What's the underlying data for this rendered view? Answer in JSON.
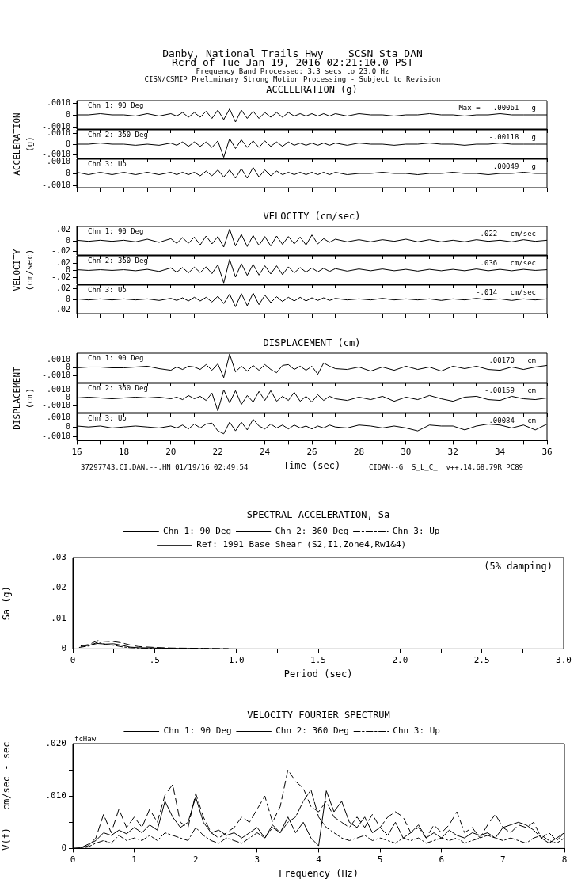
{
  "chart_data": [
    {
      "type": "other",
      "title": "Danby, National Trails Hwy    SCSN Sta DAN",
      "subtitle": "Rcrd of Tue Jan 19, 2016 02:21:10.0 PST",
      "annotations": [
        "Frequency Band Processed: 3.3 secs to 23.0 Hz",
        "CISN/CSMIP Preliminary Strong Motion Processing - Subject to Revision"
      ]
    },
    {
      "type": "line",
      "title": "ACCELERATION (g)",
      "annotations": [
        "Chn 1: 90 Deg",
        "Max =  -.00061   g"
      ],
      "tick_labels": "y",
      "x": [
        16,
        16.5,
        17,
        17.5,
        18,
        18.5,
        19,
        19.5,
        20,
        20.25,
        20.5,
        20.75,
        21,
        21.25,
        21.5,
        21.75,
        22,
        22.25,
        22.5,
        22.75,
        23,
        23.25,
        23.5,
        23.75,
        24,
        24.25,
        24.5,
        24.75,
        25,
        25.25,
        25.5,
        25.75,
        26,
        26.25,
        26.5,
        26.75,
        27,
        27.5,
        28,
        28.5,
        29,
        29.5,
        30,
        30.5,
        31,
        31.5,
        32,
        32.5,
        33,
        33.5,
        34,
        34.5,
        35,
        35.5,
        36
      ],
      "xlim": [
        16,
        36
      ],
      "xticks": [
        16,
        {
          "value": 17,
          "label": null
        },
        18,
        {
          "value": 19,
          "label": null
        },
        20,
        {
          "value": 21,
          "label": null
        },
        22,
        {
          "value": 23,
          "label": null
        },
        24,
        {
          "value": 25,
          "label": null
        },
        26,
        {
          "value": 27,
          "label": null
        },
        28,
        {
          "value": 29,
          "label": null
        },
        30,
        {
          "value": 31,
          "label": null
        },
        32,
        {
          "value": 33,
          "label": null
        },
        34,
        {
          "value": 35,
          "label": null
        },
        36
      ],
      "ylim": [
        -0.0012,
        0.0012
      ],
      "yticks": [
        {
          "value": 0.001,
          "label": ".0010"
        },
        {
          "value": 0,
          "label": "0"
        },
        {
          "value": -0.001,
          "label": "-.0010"
        }
      ],
      "series": [
        {
          "color": "#000000",
          "values": [
            0,
            0,
            0.0001,
            0,
            0,
            -0.0001,
            0.0001,
            -0.0001,
            0.0001,
            -0.0001,
            0.0002,
            -0.0002,
            0.0002,
            -0.0002,
            0.0003,
            -0.0003,
            0.0004,
            -0.0004,
            0.0005,
            -0.0006,
            0.0004,
            -0.0003,
            0.0003,
            -0.0003,
            0.0002,
            -0.0002,
            0.0002,
            -0.0002,
            0.0002,
            -0.0001,
            0.0001,
            -0.0001,
            0.0001,
            -0.0001,
            0.0001,
            -0.0001,
            0.0001,
            -0.0001,
            0.0001,
            0,
            0,
            -0.0001,
            0,
            0,
            0.0001,
            0,
            0,
            -0.0001,
            0,
            0,
            0.0001,
            0,
            0,
            0,
            0
          ]
        }
      ]
    },
    {
      "type": "line",
      "ylabel": "ACCELERATION\n(g)",
      "annotations": [
        "Chn 2: 360 Deg",
        "-.00118   g"
      ],
      "tick_labels": "y",
      "x": [
        16,
        16.5,
        17,
        17.5,
        18,
        18.5,
        19,
        19.5,
        20,
        20.25,
        20.5,
        20.75,
        21,
        21.25,
        21.5,
        21.75,
        22,
        22.25,
        22.5,
        22.75,
        23,
        23.25,
        23.5,
        23.75,
        24,
        24.25,
        24.5,
        24.75,
        25,
        25.25,
        25.5,
        25.75,
        26,
        26.25,
        26.5,
        26.75,
        27,
        27.5,
        28,
        28.5,
        29,
        29.5,
        30,
        30.5,
        31,
        31.5,
        32,
        32.5,
        33,
        33.5,
        34,
        34.5,
        35,
        35.5,
        36
      ],
      "xlim": [
        16,
        36
      ],
      "xticks": [
        16,
        {
          "value": 17,
          "label": null
        },
        18,
        {
          "value": 19,
          "label": null
        },
        20,
        {
          "value": 21,
          "label": null
        },
        22,
        {
          "value": 23,
          "label": null
        },
        24,
        {
          "value": 25,
          "label": null
        },
        26,
        {
          "value": 27,
          "label": null
        },
        28,
        {
          "value": 29,
          "label": null
        },
        30,
        {
          "value": 31,
          "label": null
        },
        32,
        {
          "value": 33,
          "label": null
        },
        34,
        {
          "value": 35,
          "label": null
        },
        36
      ],
      "ylim": [
        -0.0013,
        0.0013
      ],
      "yticks": [
        {
          "value": 0.001,
          "label": ".0010"
        },
        {
          "value": 0,
          "label": "0"
        },
        {
          "value": -0.001,
          "label": "-.0010"
        }
      ],
      "series": [
        {
          "color": "#000000",
          "values": [
            0,
            0,
            0.0001,
            0,
            0,
            -0.0001,
            0,
            -0.0001,
            0.0001,
            -0.0001,
            0.0002,
            -0.0002,
            0.0002,
            -0.0002,
            0.0002,
            -0.0003,
            0.0003,
            -0.0012,
            0.0005,
            -0.0004,
            0.0004,
            -0.0003,
            0.0003,
            -0.0003,
            0.0003,
            -0.0002,
            0.0002,
            -0.0002,
            0.0002,
            -0.0001,
            0.0001,
            -0.0001,
            0.0001,
            -0.0001,
            0.0001,
            -0.0001,
            0.0001,
            -0.0001,
            0.0001,
            0,
            0,
            -0.0001,
            0,
            0,
            0.0001,
            0,
            0,
            -0.0001,
            0,
            0,
            0.0001,
            0,
            0,
            0,
            0
          ]
        }
      ]
    },
    {
      "type": "line",
      "annotations": [
        "Chn 3: Up",
        ".00049   g"
      ],
      "tick_labels": "y",
      "x": [
        16,
        16.5,
        17,
        17.5,
        18,
        18.5,
        19,
        19.5,
        20,
        20.25,
        20.5,
        20.75,
        21,
        21.25,
        21.5,
        21.75,
        22,
        22.25,
        22.5,
        22.75,
        23,
        23.25,
        23.5,
        23.75,
        24,
        24.25,
        24.5,
        24.75,
        25,
        25.25,
        25.5,
        25.75,
        26,
        26.25,
        26.5,
        26.75,
        27,
        27.5,
        28,
        28.5,
        29,
        29.5,
        30,
        30.5,
        31,
        31.5,
        32,
        32.5,
        33,
        33.5,
        34,
        34.5,
        35,
        35.5,
        36
      ],
      "xlim": [
        16,
        36
      ],
      "xticks": [
        16,
        {
          "value": 17,
          "label": null
        },
        18,
        {
          "value": 19,
          "label": null
        },
        20,
        {
          "value": 21,
          "label": null
        },
        22,
        {
          "value": 23,
          "label": null
        },
        24,
        {
          "value": 25,
          "label": null
        },
        26,
        {
          "value": 27,
          "label": null
        },
        28,
        {
          "value": 29,
          "label": null
        },
        30,
        {
          "value": 31,
          "label": null
        },
        32,
        {
          "value": 33,
          "label": null
        },
        34,
        {
          "value": 35,
          "label": null
        },
        36
      ],
      "ylim": [
        -0.0012,
        0.0012
      ],
      "yticks": [
        {
          "value": 0.001,
          "label": ".0010"
        },
        {
          "value": 0,
          "label": "0"
        },
        {
          "value": -0.001,
          "label": "-.0010"
        }
      ],
      "series": [
        {
          "color": "#000000",
          "values": [
            0.0001,
            -0.0001,
            0.0001,
            -0.0001,
            0.0001,
            -0.0001,
            0.0001,
            -0.0001,
            0.0001,
            -0.0001,
            0.0001,
            -0.0001,
            0.0001,
            -0.0002,
            0.0002,
            -0.0002,
            0.0003,
            -0.0003,
            0.0003,
            -0.0004,
            0.0004,
            -0.0004,
            0.0005,
            -0.0003,
            0.0003,
            -0.0002,
            0.0002,
            -0.0001,
            0.0001,
            -0.0001,
            0.0001,
            -0.0001,
            0.0001,
            -0.0001,
            0.0001,
            -0.0001,
            0.0001,
            -0.0001,
            0,
            0,
            0.0001,
            0,
            0,
            -0.0001,
            0,
            0,
            0.0001,
            0,
            0,
            -0.0001,
            0,
            0,
            0.0001,
            0,
            0
          ]
        }
      ]
    },
    {
      "type": "line",
      "title": "VELOCITY (cm/sec)",
      "annotations": [
        "Chn 1: 90 Deg",
        ".022   cm/sec"
      ],
      "tick_labels": "y",
      "x": [
        16,
        16.5,
        17,
        17.5,
        18,
        18.5,
        19,
        19.5,
        20,
        20.25,
        20.5,
        20.75,
        21,
        21.25,
        21.5,
        21.75,
        22,
        22.25,
        22.5,
        22.75,
        23,
        23.25,
        23.5,
        23.75,
        24,
        24.25,
        24.5,
        24.75,
        25,
        25.25,
        25.5,
        25.75,
        26,
        26.25,
        26.5,
        26.75,
        27,
        27.5,
        28,
        28.5,
        29,
        29.5,
        30,
        30.5,
        31,
        31.5,
        32,
        32.5,
        33,
        33.5,
        34,
        34.5,
        35,
        35.5,
        36
      ],
      "xlim": [
        16,
        36
      ],
      "xticks": [
        16,
        {
          "value": 17,
          "label": null
        },
        18,
        {
          "value": 19,
          "label": null
        },
        20,
        {
          "value": 21,
          "label": null
        },
        22,
        {
          "value": 23,
          "label": null
        },
        24,
        {
          "value": 25,
          "label": null
        },
        26,
        {
          "value": 27,
          "label": null
        },
        28,
        {
          "value": 29,
          "label": null
        },
        30,
        {
          "value": 31,
          "label": null
        },
        32,
        {
          "value": 33,
          "label": null
        },
        34,
        {
          "value": 35,
          "label": null
        },
        36
      ],
      "ylim": [
        -0.027,
        0.027
      ],
      "yticks": [
        {
          "value": 0.02,
          "label": ".02"
        },
        {
          "value": 0,
          "label": "0"
        },
        {
          "value": -0.02,
          "label": "-.02"
        }
      ],
      "series": [
        {
          "color": "#000000",
          "values": [
            0.001,
            -0.001,
            0.001,
            -0.001,
            0.001,
            -0.002,
            0.003,
            -0.003,
            0.004,
            -0.005,
            0.006,
            -0.005,
            0.007,
            -0.008,
            0.009,
            -0.006,
            0.008,
            -0.012,
            0.022,
            -0.01,
            0.012,
            -0.011,
            0.01,
            -0.009,
            0.008,
            -0.01,
            0.009,
            -0.007,
            0.008,
            -0.006,
            0.007,
            -0.008,
            0.011,
            -0.006,
            0.004,
            -0.003,
            0.003,
            -0.002,
            0.002,
            -0.002,
            0.002,
            -0.001,
            0.003,
            -0.002,
            0.002,
            -0.002,
            0.001,
            -0.002,
            0.002,
            -0.001,
            0.001,
            -0.002,
            0.002,
            -0.001,
            0.001
          ]
        }
      ]
    },
    {
      "type": "line",
      "ylabel": "VELOCITY\n(cm/sec)",
      "annotations": [
        "Chn 2: 360 Deg",
        ".036   cm/sec"
      ],
      "tick_labels": "y",
      "x": [
        16,
        16.5,
        17,
        17.5,
        18,
        18.5,
        19,
        19.5,
        20,
        20.25,
        20.5,
        20.75,
        21,
        21.25,
        21.5,
        21.75,
        22,
        22.25,
        22.5,
        22.75,
        23,
        23.25,
        23.5,
        23.75,
        24,
        24.25,
        24.5,
        24.75,
        25,
        25.25,
        25.5,
        25.75,
        26,
        26.25,
        26.5,
        26.75,
        27,
        27.5,
        28,
        28.5,
        29,
        29.5,
        30,
        30.5,
        31,
        31.5,
        32,
        32.5,
        33,
        33.5,
        34,
        34.5,
        35,
        35.5,
        36
      ],
      "xlim": [
        16,
        36
      ],
      "xticks": [
        16,
        {
          "value": 17,
          "label": null
        },
        18,
        {
          "value": 19,
          "label": null
        },
        20,
        {
          "value": 21,
          "label": null
        },
        22,
        {
          "value": 23,
          "label": null
        },
        24,
        {
          "value": 25,
          "label": null
        },
        26,
        {
          "value": 27,
          "label": null
        },
        28,
        {
          "value": 29,
          "label": null
        },
        30,
        {
          "value": 31,
          "label": null
        },
        32,
        {
          "value": 33,
          "label": null
        },
        34,
        {
          "value": 35,
          "label": null
        },
        36
      ],
      "ylim": [
        -0.04,
        0.04
      ],
      "yticks": [
        {
          "value": 0.02,
          "label": ".02"
        },
        {
          "value": 0,
          "label": "0"
        },
        {
          "value": -0.02,
          "label": "-.02"
        }
      ],
      "series": [
        {
          "color": "#000000",
          "values": [
            0.001,
            -0.001,
            0.001,
            -0.001,
            0.001,
            -0.002,
            0.002,
            -0.004,
            0.006,
            -0.006,
            0.007,
            -0.008,
            0.008,
            -0.007,
            0.009,
            -0.01,
            0.015,
            -0.036,
            0.03,
            -0.02,
            0.018,
            -0.015,
            0.016,
            -0.014,
            0.012,
            -0.011,
            0.012,
            -0.013,
            0.009,
            -0.008,
            0.007,
            -0.006,
            0.006,
            -0.005,
            0.005,
            -0.004,
            0.004,
            -0.003,
            0.003,
            -0.002,
            0.003,
            -0.002,
            0.002,
            -0.003,
            0.002,
            -0.002,
            0.002,
            -0.002,
            0.003,
            -0.002,
            0.002,
            -0.002,
            0.002,
            -0.001,
            0.001
          ]
        }
      ]
    },
    {
      "type": "line",
      "annotations": [
        "Chn 3: Up",
        "-.014   cm/sec"
      ],
      "tick_labels": "y",
      "x": [
        16,
        16.5,
        17,
        17.5,
        18,
        18.5,
        19,
        19.5,
        20,
        20.25,
        20.5,
        20.75,
        21,
        21.25,
        21.5,
        21.75,
        22,
        22.25,
        22.5,
        22.75,
        23,
        23.25,
        23.5,
        23.75,
        24,
        24.25,
        24.5,
        24.75,
        25,
        25.25,
        25.5,
        25.75,
        26,
        26.25,
        26.5,
        26.75,
        27,
        27.5,
        28,
        28.5,
        29,
        29.5,
        30,
        30.5,
        31,
        31.5,
        32,
        32.5,
        33,
        33.5,
        34,
        34.5,
        35,
        35.5,
        36
      ],
      "xlim": [
        16,
        36
      ],
      "xticks": [
        16,
        {
          "value": 17,
          "label": null
        },
        18,
        {
          "value": 19,
          "label": null
        },
        20,
        {
          "value": 21,
          "label": null
        },
        22,
        {
          "value": 23,
          "label": null
        },
        24,
        {
          "value": 25,
          "label": null
        },
        26,
        {
          "value": 27,
          "label": null
        },
        28,
        {
          "value": 29,
          "label": null
        },
        30,
        {
          "value": 31,
          "label": null
        },
        32,
        {
          "value": 33,
          "label": null
        },
        34,
        {
          "value": 35,
          "label": null
        },
        36
      ],
      "ylim": [
        -0.027,
        0.027
      ],
      "yticks": [
        {
          "value": 0.02,
          "label": ".02"
        },
        {
          "value": 0,
          "label": "0"
        },
        {
          "value": -0.02,
          "label": "-.02"
        }
      ],
      "series": [
        {
          "color": "#000000",
          "values": [
            0.001,
            -0.001,
            0.001,
            -0.001,
            0.001,
            -0.001,
            0.001,
            -0.002,
            0.002,
            -0.002,
            0.003,
            -0.003,
            0.004,
            -0.003,
            0.004,
            -0.005,
            0.006,
            -0.008,
            0.01,
            -0.014,
            0.011,
            -0.012,
            0.012,
            -0.01,
            0.008,
            -0.006,
            0.005,
            -0.004,
            0.004,
            -0.003,
            0.004,
            -0.003,
            0.003,
            -0.002,
            0.003,
            -0.002,
            0.002,
            -0.001,
            0.001,
            -0.001,
            0.002,
            -0.001,
            0.001,
            -0.001,
            0.001,
            -0.002,
            0.001,
            -0.001,
            0.002,
            -0.001,
            0.001,
            -0.002,
            0.001,
            -0.001,
            0.001
          ]
        }
      ]
    },
    {
      "type": "line",
      "title": "DISPLACEMENT (cm)",
      "annotations": [
        "Chn 1: 90 Deg",
        ".00170   cm"
      ],
      "tick_labels": "y",
      "x": [
        16,
        16.5,
        17,
        17.5,
        18,
        18.5,
        19,
        19.5,
        20,
        20.25,
        20.5,
        20.75,
        21,
        21.25,
        21.5,
        21.75,
        22,
        22.25,
        22.5,
        22.75,
        23,
        23.25,
        23.5,
        23.75,
        24,
        24.25,
        24.5,
        24.75,
        25,
        25.25,
        25.5,
        25.75,
        26,
        26.25,
        26.5,
        26.75,
        27,
        27.5,
        28,
        28.5,
        29,
        29.5,
        30,
        30.5,
        31,
        31.5,
        32,
        32.5,
        33,
        33.5,
        34,
        34.5,
        35,
        35.5,
        36
      ],
      "xlim": [
        16,
        36
      ],
      "xticks": [
        16,
        {
          "value": 17,
          "label": null
        },
        18,
        {
          "value": 19,
          "label": null
        },
        20,
        {
          "value": 21,
          "label": null
        },
        22,
        {
          "value": 23,
          "label": null
        },
        24,
        {
          "value": 25,
          "label": null
        },
        26,
        {
          "value": 27,
          "label": null
        },
        28,
        {
          "value": 29,
          "label": null
        },
        30,
        {
          "value": 31,
          "label": null
        },
        32,
        {
          "value": 33,
          "label": null
        },
        34,
        {
          "value": 35,
          "label": null
        },
        36
      ],
      "ylim": [
        -0.0018,
        0.0018
      ],
      "yticks": [
        {
          "value": 0.001,
          "label": ".0010"
        },
        {
          "value": 0,
          "label": "0"
        },
        {
          "value": -0.001,
          "label": "-.0010"
        }
      ],
      "series": [
        {
          "color": "#000000",
          "values": [
            0,
            0.0001,
            0.0001,
            0,
            0,
            0.0001,
            0.0002,
            -0.0001,
            -0.0003,
            0.0001,
            -0.0002,
            0.0002,
            0.0001,
            -0.0002,
            0.0004,
            -0.0003,
            0.0005,
            -0.0012,
            0.0017,
            -0.0005,
            0.0002,
            -0.0004,
            0.0003,
            -0.0003,
            0.0004,
            -0.0002,
            -0.0006,
            0.0003,
            0.0004,
            -0.0002,
            0.0002,
            -0.0003,
            0.0002,
            -0.0008,
            0.0006,
            0.0002,
            -0.0001,
            -0.0002,
            0.0001,
            -0.0004,
            0.0001,
            -0.0003,
            0.0002,
            -0.0002,
            0.0001,
            -0.0004,
            0.0002,
            -0.0001,
            0.0002,
            -0.0002,
            -0.0003,
            0.0001,
            -0.0002,
            0.0001,
            0.0003
          ]
        }
      ]
    },
    {
      "type": "line",
      "ylabel": "DISPLACEMENT\n(cm)",
      "annotations": [
        "Chn 2: 360 Deg",
        "-.00159   cm"
      ],
      "tick_labels": "y",
      "x": [
        16,
        16.5,
        17,
        17.5,
        18,
        18.5,
        19,
        19.5,
        20,
        20.25,
        20.5,
        20.75,
        21,
        21.25,
        21.5,
        21.75,
        22,
        22.25,
        22.5,
        22.75,
        23,
        23.25,
        23.5,
        23.75,
        24,
        24.25,
        24.5,
        24.75,
        25,
        25.25,
        25.5,
        25.75,
        26,
        26.25,
        26.5,
        26.75,
        27,
        27.5,
        28,
        28.5,
        29,
        29.5,
        30,
        30.5,
        31,
        31.5,
        32,
        32.5,
        33,
        33.5,
        34,
        34.5,
        35,
        35.5,
        36
      ],
      "xlim": [
        16,
        36
      ],
      "xticks": [
        16,
        {
          "value": 17,
          "label": null
        },
        18,
        {
          "value": 19,
          "label": null
        },
        20,
        {
          "value": 21,
          "label": null
        },
        22,
        {
          "value": 23,
          "label": null
        },
        24,
        {
          "value": 25,
          "label": null
        },
        26,
        {
          "value": 27,
          "label": null
        },
        28,
        {
          "value": 29,
          "label": null
        },
        30,
        {
          "value": 31,
          "label": null
        },
        32,
        {
          "value": 33,
          "label": null
        },
        34,
        {
          "value": 35,
          "label": null
        },
        36
      ],
      "ylim": [
        -0.0018,
        0.0018
      ],
      "yticks": [
        {
          "value": 0.001,
          "label": ".0010"
        },
        {
          "value": 0,
          "label": "0"
        },
        {
          "value": -0.001,
          "label": "-.0010"
        }
      ],
      "series": [
        {
          "color": "#000000",
          "values": [
            0,
            0.0001,
            0,
            -0.0001,
            0,
            0.0001,
            0,
            0.0001,
            -0.0001,
            0.0001,
            -0.0002,
            0.0003,
            -0.0001,
            0.0002,
            -0.0003,
            0.0006,
            -0.0016,
            0.001,
            -0.0006,
            0.0009,
            -0.0008,
            0.0003,
            -0.0005,
            0.0008,
            -0.0003,
            0.0009,
            -0.0004,
            0.0002,
            -0.0003,
            0.0007,
            -0.0004,
            0.0002,
            -0.0005,
            0.0004,
            -0.0003,
            0.0002,
            -0.0001,
            -0.0003,
            0.0001,
            -0.0002,
            0.0002,
            -0.0004,
            0.0001,
            -0.0002,
            0.0003,
            -0.0001,
            -0.0004,
            0.0001,
            0.0002,
            -0.0002,
            -0.0003,
            0.0002,
            -0.0001,
            -0.0002,
            0
          ]
        }
      ]
    },
    {
      "type": "line",
      "xlabel": "Time (sec)",
      "annotations": [
        "Chn 3: Up",
        ".00084   cm",
        "37297743.CI.DAN.--.HN 01/19/16 02:49:54",
        "CIDAN--G  S_L_C_  v++.14.68.79R PC89"
      ],
      "x": [
        16,
        16.5,
        17,
        17.5,
        18,
        18.5,
        19,
        19.5,
        20,
        20.25,
        20.5,
        20.75,
        21,
        21.25,
        21.5,
        21.75,
        22,
        22.25,
        22.5,
        22.75,
        23,
        23.25,
        23.5,
        23.75,
        24,
        24.25,
        24.5,
        24.75,
        25,
        25.25,
        25.5,
        25.75,
        26,
        26.25,
        26.5,
        26.75,
        27,
        27.5,
        28,
        28.5,
        29,
        29.5,
        30,
        30.5,
        31,
        31.5,
        32,
        32.5,
        33,
        33.5,
        34,
        34.5,
        35,
        35.5,
        36
      ],
      "xlim": [
        16,
        36
      ],
      "xticks": [
        16,
        {
          "value": 17,
          "label": null
        },
        18,
        {
          "value": 19,
          "label": null
        },
        20,
        {
          "value": 21,
          "label": null
        },
        22,
        {
          "value": 23,
          "label": null
        },
        24,
        {
          "value": 25,
          "label": null
        },
        26,
        {
          "value": 27,
          "label": null
        },
        28,
        {
          "value": 29,
          "label": null
        },
        30,
        {
          "value": 31,
          "label": null
        },
        32,
        {
          "value": 33,
          "label": null
        },
        34,
        {
          "value": 35,
          "label": null
        },
        36
      ],
      "ylim": [
        -0.0014,
        0.0014
      ],
      "yticks": [
        {
          "value": 0.001,
          "label": ".0010"
        },
        {
          "value": 0,
          "label": "0"
        },
        {
          "value": -0.001,
          "label": "-.0010"
        }
      ],
      "series": [
        {
          "color": "#000000",
          "values": [
            0.0001,
            0,
            0.0001,
            -0.0001,
            0,
            0.0001,
            0,
            -0.0001,
            0.0001,
            -0.0001,
            0.0002,
            -0.0002,
            0.0003,
            -0.0001,
            0.0003,
            0.0004,
            -0.0004,
            -0.0007,
            0.0005,
            -0.0004,
            0.0005,
            -0.0003,
            0.0008,
            0.0001,
            -0.0002,
            0.0003,
            -0.0001,
            0.0002,
            -0.0002,
            0.0002,
            -0.0001,
            0.0001,
            -0.0002,
            0.0001,
            -0.0001,
            0.0002,
            0,
            -0.0001,
            0.0002,
            0.0001,
            -0.0001,
            0.0001,
            -0.0001,
            -0.0004,
            0.0002,
            0.0001,
            0.0001,
            -0.0003,
            0.0001,
            0.0003,
            0.0002,
            -0.0001,
            0.0002,
            -0.0003,
            0.0003
          ]
        }
      ]
    },
    {
      "type": "line",
      "title": "SPECTRAL ACCELERATION, Sa",
      "xlabel": "Period (sec)",
      "ylabel": "Sa (g)",
      "annotations": [
        "(5% damping)"
      ],
      "legend": "top",
      "xlim": [
        0,
        3
      ],
      "xticks": [
        {
          "value": 0,
          "label": "0"
        },
        {
          "value": 0.25,
          "label": null
        },
        {
          "value": 0.5,
          "label": ".5"
        },
        {
          "value": 0.75,
          "label": null
        },
        {
          "value": 1,
          "label": "1.0"
        },
        {
          "value": 1.25,
          "label": null
        },
        {
          "value": 1.5,
          "label": "1.5"
        },
        {
          "value": 1.75,
          "label": null
        },
        {
          "value": 2,
          "label": "2.0"
        },
        {
          "value": 2.25,
          "label": null
        },
        {
          "value": 2.5,
          "label": "2.5"
        },
        {
          "value": 2.75,
          "label": null
        },
        {
          "value": 3,
          "label": "3.0"
        }
      ],
      "ylim": [
        0,
        0.03
      ],
      "yticks": [
        {
          "value": 0,
          "label": "0"
        },
        {
          "value": 0.005,
          "label": null
        },
        {
          "value": 0.01,
          "label": ".01"
        },
        {
          "value": 0.015,
          "label": null
        },
        {
          "value": 0.02,
          "label": ".02"
        },
        {
          "value": 0.025,
          "label": null
        },
        {
          "value": 0.03,
          "label": ".03"
        }
      ],
      "series": [
        {
          "name": "Chn 1: 90 Deg",
          "color": "#000000",
          "line_style": "solid",
          "x": [
            0.05,
            0.1,
            0.15,
            0.2,
            0.25,
            0.3,
            0.35,
            0.4,
            0.5,
            0.6,
            0.8,
            1.0
          ],
          "values": [
            0.0008,
            0.0012,
            0.0018,
            0.0016,
            0.0017,
            0.0012,
            0.0006,
            0.0004,
            0.0003,
            0.0002,
            0.0001,
            0
          ]
        },
        {
          "name": "Chn 2: 360 Deg",
          "color": "#000000",
          "line_style": "dashed",
          "x": [
            0.05,
            0.1,
            0.15,
            0.2,
            0.25,
            0.3,
            0.35,
            0.4,
            0.5,
            0.6,
            0.8,
            0.95
          ],
          "values": [
            0.001,
            0.0015,
            0.0027,
            0.0025,
            0.0024,
            0.002,
            0.0013,
            0.0008,
            0.0005,
            0.0003,
            0.0002,
            0.0001
          ]
        },
        {
          "name": "Chn 3: Up",
          "color": "#000000",
          "line_style": "dashdot",
          "x": [
            0.04,
            0.1,
            0.15,
            0.2,
            0.25,
            0.3,
            0.35,
            0.4,
            0.5,
            0.6,
            0.7,
            0.85
          ],
          "values": [
            0.0005,
            0.001,
            0.0022,
            0.0015,
            0.0012,
            0.0007,
            0.0004,
            0.0003,
            0.0002,
            0.0001,
            0.0001,
            0
          ]
        },
        {
          "name": "Ref: 1991 Base Shear (S2,I1,Zone4,Rw1&4)",
          "color": "#333333",
          "line_style": "solid"
        }
      ]
    },
    {
      "type": "line",
      "title": "VELOCITY FOURIER SPECTRUM",
      "xlabel": "Frequency (Hz)",
      "ylabel": "V(f)   cm/sec - sec",
      "annotations": [
        "fcHaw"
      ],
      "legend": "top",
      "xlim": [
        0,
        8
      ],
      "xticks": [
        {
          "value": 0,
          "label": "0"
        },
        1,
        2,
        3,
        4,
        5,
        6,
        7,
        8
      ],
      "ylim": [
        0,
        0.02
      ],
      "yticks": [
        {
          "value": 0,
          "label": "0"
        },
        {
          "value": 0.005,
          "label": null
        },
        {
          "value": 0.01,
          "label": ".010"
        },
        {
          "value": 0.015,
          "label": null
        },
        {
          "value": 0.02,
          "label": ".020"
        }
      ],
      "x": [
        0,
        0.125,
        0.25,
        0.375,
        0.5,
        0.625,
        0.75,
        0.875,
        1,
        1.125,
        1.25,
        1.375,
        1.5,
        1.625,
        1.75,
        1.875,
        2,
        2.125,
        2.25,
        2.375,
        2.5,
        2.625,
        2.75,
        2.875,
        3,
        3.125,
        3.25,
        3.375,
        3.5,
        3.625,
        3.75,
        3.875,
        4,
        4.125,
        4.25,
        4.375,
        4.5,
        4.625,
        4.75,
        4.875,
        5,
        5.125,
        5.25,
        5.375,
        5.5,
        5.625,
        5.75,
        5.875,
        6,
        6.125,
        6.25,
        6.375,
        6.5,
        6.625,
        6.75,
        6.875,
        7,
        7.125,
        7.25,
        7.375,
        7.5,
        7.625,
        7.75,
        7.875,
        8
      ],
      "series": [
        {
          "name": "Chn 1: 90 Deg",
          "color": "#000000",
          "line_style": "solid",
          "values": [
            0,
            0.0001,
            0.0008,
            0.0015,
            0.003,
            0.0025,
            0.0035,
            0.0028,
            0.004,
            0.003,
            0.0045,
            0.0035,
            0.009,
            0.006,
            0.004,
            0.005,
            0.0098,
            0.005,
            0.003,
            0.0035,
            0.0025,
            0.003,
            0.002,
            0.003,
            0.004,
            0.002,
            0.0045,
            0.003,
            0.006,
            0.003,
            0.005,
            0.002,
            0.0005,
            0.011,
            0.007,
            0.009,
            0.005,
            0.004,
            0.006,
            0.003,
            0.004,
            0.0025,
            0.005,
            0.002,
            0.003,
            0.0045,
            0.002,
            0.003,
            0.002,
            0.0035,
            0.0025,
            0.002,
            0.003,
            0.0025,
            0.003,
            0.002,
            0.004,
            0.0045,
            0.005,
            0.0045,
            0.0035,
            0.002,
            0.001,
            0.002,
            0.003
          ]
        },
        {
          "name": "Chn 2: 360 Deg",
          "color": "#000000",
          "line_style": "dashed",
          "values": [
            0,
            0.0001,
            0.0005,
            0.002,
            0.0065,
            0.003,
            0.0075,
            0.004,
            0.006,
            0.004,
            0.0075,
            0.005,
            0.0102,
            0.0122,
            0.005,
            0.004,
            0.0105,
            0.006,
            0.003,
            0.002,
            0.003,
            0.004,
            0.006,
            0.005,
            0.0075,
            0.01,
            0.005,
            0.008,
            0.015,
            0.0128,
            0.0115,
            0.008,
            0.007,
            0.009,
            0.006,
            0.005,
            0.004,
            0.006,
            0.004,
            0.0065,
            0.004,
            0.006,
            0.007,
            0.006,
            0.003,
            0.004,
            0.002,
            0.0045,
            0.003,
            0.0045,
            0.007,
            0.003,
            0.004,
            0.002,
            0.0045,
            0.0065,
            0.004,
            0.003,
            0.0045,
            0.004,
            0.005,
            0.002,
            0.003,
            0.0015,
            0.003
          ]
        },
        {
          "name": "Chn 3: Up",
          "color": "#000000",
          "line_style": "dashdot",
          "values": [
            0,
            0,
            0.0003,
            0.001,
            0.0015,
            0.001,
            0.0025,
            0.0015,
            0.002,
            0.0015,
            0.0025,
            0.0015,
            0.003,
            0.0025,
            0.002,
            0.0015,
            0.004,
            0.0025,
            0.0015,
            0.001,
            0.002,
            0.0015,
            0.001,
            0.002,
            0.003,
            0.002,
            0.004,
            0.003,
            0.005,
            0.006,
            0.009,
            0.0112,
            0.006,
            0.004,
            0.003,
            0.002,
            0.0015,
            0.002,
            0.0025,
            0.0015,
            0.002,
            0.0015,
            0.001,
            0.002,
            0.0015,
            0.002,
            0.001,
            0.0015,
            0.002,
            0.0015,
            0.002,
            0.001,
            0.0015,
            0.002,
            0.0025,
            0.002,
            0.0015,
            0.002,
            0.0015,
            0.001,
            0.002,
            0.0025,
            0.0015,
            0.001,
            0.002
          ]
        }
      ]
    }
  ]
}
